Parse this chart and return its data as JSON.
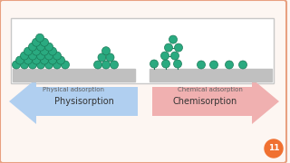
{
  "bg_color": "#fdf6f2",
  "border_color": "#e8a080",
  "left_arrow_color": "#b0cff0",
  "right_arrow_color": "#f0b0b0",
  "left_arrow_text": "Physisorption",
  "right_arrow_text": "Chemisorption",
  "box_border": "#c8c8c8",
  "surface_color": "#c0c0c0",
  "molecule_color": "#2aaa80",
  "molecule_edge": "#1a7a58",
  "label_left": "Physical adsorption",
  "label_right": "Chemical adsorption",
  "badge_color": "#f07030",
  "badge_text": "11",
  "text_color": "#606060"
}
